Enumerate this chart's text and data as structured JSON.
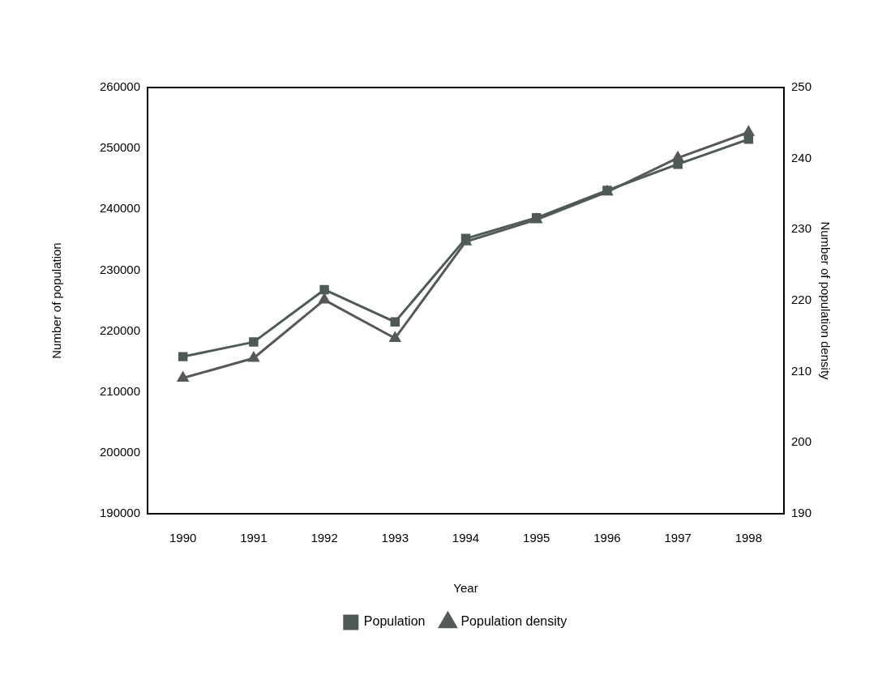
{
  "chart_data": {
    "type": "line",
    "categories": [
      "1990",
      "1991",
      "1992",
      "1993",
      "1994",
      "1995",
      "1996",
      "1997",
      "1998"
    ],
    "series": [
      {
        "name": "Population",
        "color": "#4d5a56",
        "marker": "square",
        "values": [
          215800,
          218200,
          226800,
          221500,
          235200,
          238600,
          243100,
          247400,
          251500
        ]
      },
      {
        "name": "Population density",
        "color": "#555a58",
        "marker": "triangle",
        "axis": "y2",
        "values": [
          209.1,
          211.9,
          220.1,
          214.7,
          228.3,
          231.4,
          235.3,
          240.1,
          243.7
        ]
      }
    ],
    "xlabel": "Year",
    "ylabel": "Number of population",
    "y2label": "Number of population density",
    "ylim": [
      190000,
      260000
    ],
    "yticks": [
      190000,
      200000,
      210000,
      220000,
      230000,
      240000,
      250000,
      260000
    ],
    "y2lim": [
      190,
      250
    ],
    "y2ticks": [
      190,
      200,
      210,
      220,
      230,
      240,
      250
    ],
    "grid": false,
    "legend": "bottom",
    "line_style": "solid"
  }
}
